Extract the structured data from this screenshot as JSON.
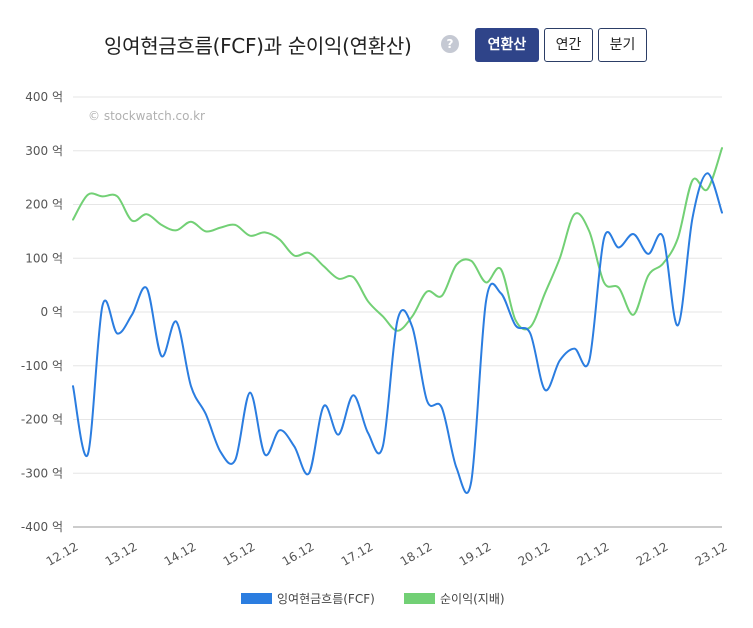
{
  "header": {
    "title": "잉여현금흐름(FCF)과 순이익(연환산)",
    "help_icon": "question-icon",
    "buttons": [
      {
        "label": "연환산",
        "active": true
      },
      {
        "label": "연간",
        "active": false
      },
      {
        "label": "분기",
        "active": false
      }
    ]
  },
  "watermark": "© stockwatch.co.kr",
  "chart_data": {
    "type": "line",
    "xlim": [
      0,
      44
    ],
    "ylim": [
      -400,
      400
    ],
    "y_ticks": [
      400,
      300,
      200,
      100,
      0,
      -100,
      -200,
      -300,
      -400
    ],
    "y_tick_labels": [
      "400 억",
      "300 억",
      "200 억",
      "100 억",
      "0 억",
      "-100 억",
      "-200 억",
      "-300 억",
      "-400 억"
    ],
    "x_tick_positions": [
      0,
      4,
      8,
      12,
      16,
      20,
      24,
      28,
      32,
      36,
      40,
      44
    ],
    "x_tick_labels": [
      "12.12",
      "13.12",
      "14.12",
      "15.12",
      "16.12",
      "17.12",
      "18.12",
      "19.12",
      "20.12",
      "21.12",
      "22.12",
      "23.12"
    ],
    "legend_position": "bottom",
    "series": [
      {
        "name": "잉여현금흐름(FCF)",
        "color": "#2b7de0",
        "values": [
          -138,
          -265,
          12,
          -40,
          -5,
          44,
          -82,
          -18,
          -138,
          -190,
          -260,
          -275,
          -150,
          -265,
          -220,
          -250,
          -300,
          -175,
          -228,
          -155,
          -225,
          -250,
          -15,
          -28,
          -165,
          -178,
          -290,
          -315,
          20,
          35,
          -25,
          -40,
          -145,
          -90,
          -68,
          -90,
          137,
          120,
          145,
          108,
          140,
          -25,
          175,
          258,
          185
        ]
      },
      {
        "name": "순이익(지배)",
        "color": "#72d075",
        "values": [
          172,
          218,
          215,
          215,
          170,
          182,
          162,
          152,
          168,
          150,
          157,
          162,
          142,
          148,
          135,
          105,
          110,
          85,
          62,
          65,
          20,
          -8,
          -35,
          -8,
          38,
          30,
          88,
          95,
          55,
          80,
          -15,
          -28,
          35,
          100,
          182,
          150,
          55,
          45,
          -5,
          68,
          90,
          137,
          245,
          228,
          305
        ]
      }
    ]
  }
}
